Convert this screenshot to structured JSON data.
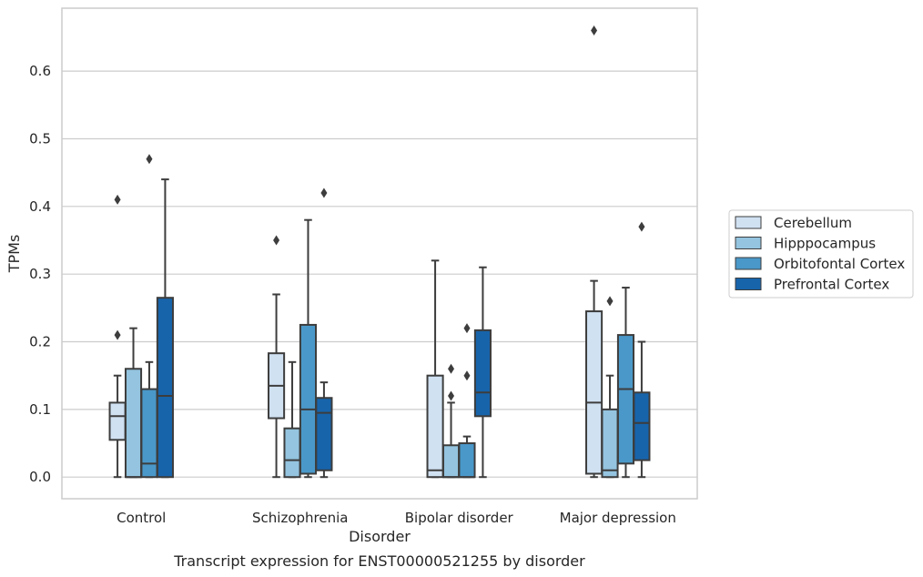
{
  "chart_data": {
    "type": "box",
    "xlabel": "Disorder",
    "ylabel": "TPMs",
    "caption": "Transcript expression for ENST00000521255 by disorder",
    "ylim": [
      -0.032,
      0.693
    ],
    "yticks": [
      "0.0",
      "0.1",
      "0.2",
      "0.3",
      "0.4",
      "0.5",
      "0.6"
    ],
    "grid": "horizontal",
    "legend_position": "right",
    "categories": [
      "Control",
      "Schizophrenia",
      "Bipolar disorder",
      "Major depression"
    ],
    "series": [
      {
        "name": "Cerebellum",
        "color": "#d0e1f2",
        "boxes": [
          {
            "whisker_low": 0.0,
            "q1": 0.055,
            "median": 0.09,
            "q3": 0.11,
            "whisker_high": 0.15,
            "outliers": [
              0.21,
              0.41
            ]
          },
          {
            "whisker_low": 0.0,
            "q1": 0.087,
            "median": 0.135,
            "q3": 0.183,
            "whisker_high": 0.27,
            "outliers": [
              0.35
            ]
          },
          {
            "whisker_low": 0.0,
            "q1": 0.0,
            "median": 0.01,
            "q3": 0.15,
            "whisker_high": 0.32,
            "outliers": []
          },
          {
            "whisker_low": 0.0,
            "q1": 0.005,
            "median": 0.11,
            "q3": 0.245,
            "whisker_high": 0.29,
            "outliers": [
              0.66
            ]
          }
        ]
      },
      {
        "name": "Hipppocampus",
        "color": "#94c4df",
        "boxes": [
          {
            "whisker_low": 0.0,
            "q1": 0.0,
            "median": 0.0,
            "q3": 0.16,
            "whisker_high": 0.22,
            "outliers": []
          },
          {
            "whisker_low": 0.0,
            "q1": 0.0,
            "median": 0.025,
            "q3": 0.072,
            "whisker_high": 0.17,
            "outliers": []
          },
          {
            "whisker_low": 0.0,
            "q1": 0.0,
            "median": 0.0,
            "q3": 0.047,
            "whisker_high": 0.11,
            "outliers": [
              0.12,
              0.16
            ]
          },
          {
            "whisker_low": 0.0,
            "q1": 0.0,
            "median": 0.01,
            "q3": 0.1,
            "whisker_high": 0.15,
            "outliers": [
              0.26
            ]
          }
        ]
      },
      {
        "name": "Orbitofontal Cortex",
        "color": "#4a98c9",
        "boxes": [
          {
            "whisker_low": 0.0,
            "q1": 0.0,
            "median": 0.02,
            "q3": 0.13,
            "whisker_high": 0.17,
            "outliers": [
              0.47
            ]
          },
          {
            "whisker_low": 0.0,
            "q1": 0.005,
            "median": 0.1,
            "q3": 0.225,
            "whisker_high": 0.38,
            "outliers": []
          },
          {
            "whisker_low": 0.0,
            "q1": 0.0,
            "median": 0.0,
            "q3": 0.05,
            "whisker_high": 0.06,
            "outliers": [
              0.15,
              0.22
            ]
          },
          {
            "whisker_low": 0.0,
            "q1": 0.02,
            "median": 0.13,
            "q3": 0.21,
            "whisker_high": 0.28,
            "outliers": []
          }
        ]
      },
      {
        "name": "Prefrontal Cortex",
        "color": "#1764ab",
        "boxes": [
          {
            "whisker_low": 0.0,
            "q1": 0.0,
            "median": 0.12,
            "q3": 0.265,
            "whisker_high": 0.44,
            "outliers": []
          },
          {
            "whisker_low": 0.0,
            "q1": 0.01,
            "median": 0.095,
            "q3": 0.117,
            "whisker_high": 0.14,
            "outliers": [
              0.42
            ]
          },
          {
            "whisker_low": 0.0,
            "q1": 0.09,
            "median": 0.125,
            "q3": 0.217,
            "whisker_high": 0.31,
            "outliers": []
          },
          {
            "whisker_low": 0.0,
            "q1": 0.025,
            "median": 0.08,
            "q3": 0.125,
            "whisker_high": 0.2,
            "outliers": [
              0.37
            ]
          }
        ]
      }
    ]
  }
}
